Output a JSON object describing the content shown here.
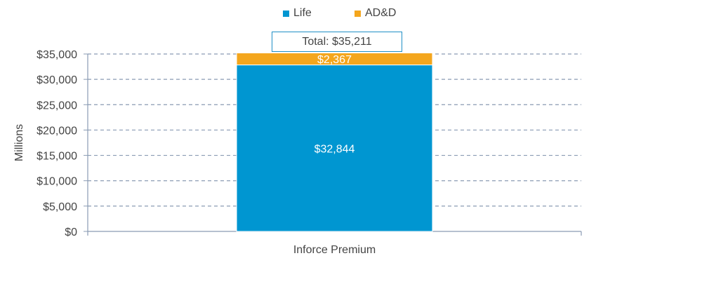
{
  "chart_data": {
    "type": "bar",
    "stacked": true,
    "categories": [
      "Inforce Premium"
    ],
    "series": [
      {
        "name": "Life",
        "values": [
          32844
        ],
        "labels": [
          "$32,844"
        ],
        "color": "#0096d1"
      },
      {
        "name": "AD&D",
        "values": [
          2367
        ],
        "labels": [
          "$2,367"
        ],
        "color": "#f4a61d"
      }
    ],
    "total_label": "Total: $35,211",
    "ylabel": "Millions",
    "xlabel": "",
    "ylim": [
      0,
      35000
    ],
    "yticks": [
      {
        "value": 0,
        "label": "$0"
      },
      {
        "value": 5000,
        "label": "$5,000"
      },
      {
        "value": 10000,
        "label": "$10,000"
      },
      {
        "value": 15000,
        "label": "$15,000"
      },
      {
        "value": 20000,
        "label": "$20,000"
      },
      {
        "value": 25000,
        "label": "$25,000"
      },
      {
        "value": 30000,
        "label": "$30,000"
      },
      {
        "value": 35000,
        "label": "$35,000"
      }
    ],
    "grid": true,
    "legend_position": "top-center"
  }
}
